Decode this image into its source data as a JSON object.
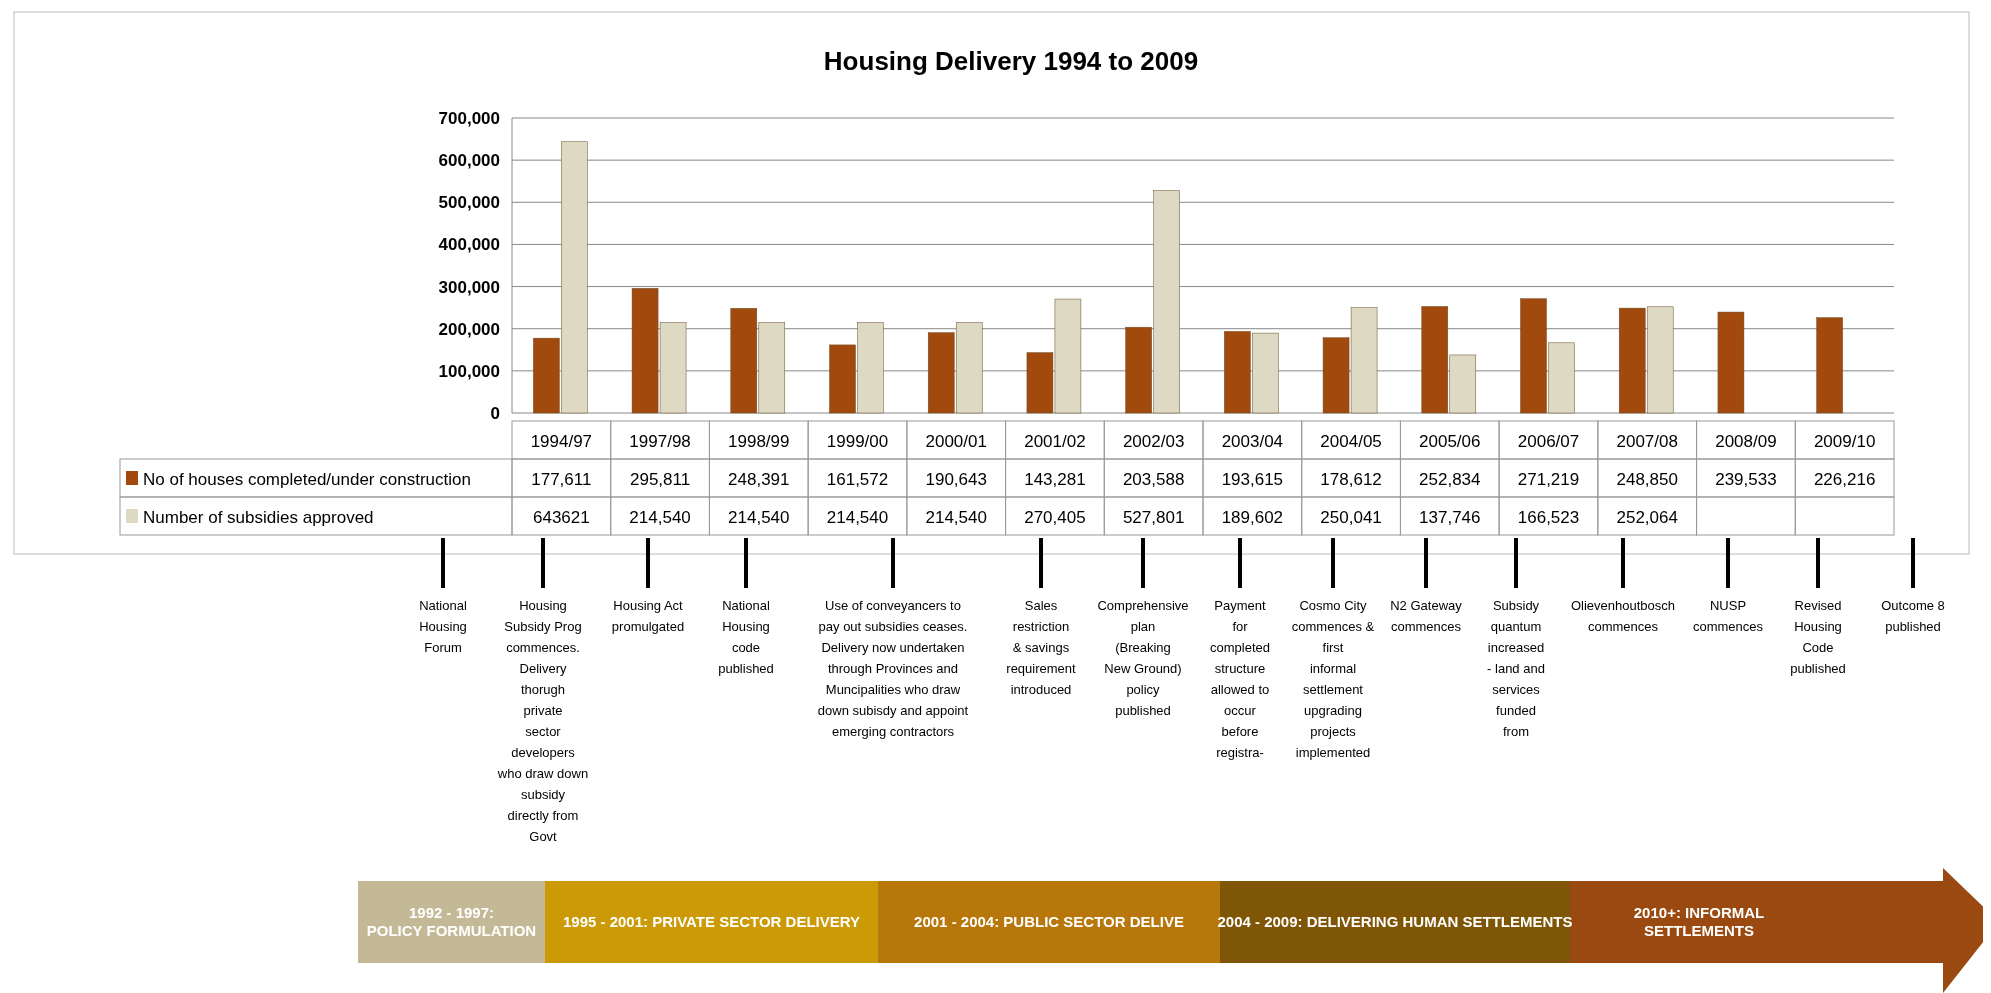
{
  "chart_data": {
    "type": "bar",
    "title": "Housing Delivery 1994 to 2009",
    "categories": [
      "1994/97",
      "1997/98",
      "1998/99",
      "1999/00",
      "2000/01",
      "2001/02",
      "2002/03",
      "2003/04",
      "2004/05",
      "2005/06",
      "2006/07",
      "2007/08",
      "2008/09",
      "2009/10"
    ],
    "series": [
      {
        "name": "No of houses completed/under construction",
        "color": "#a24a0e",
        "values": [
          177611,
          295811,
          248391,
          161572,
          190643,
          143281,
          203588,
          193615,
          178612,
          252834,
          271219,
          248850,
          239533,
          226216
        ],
        "value_labels": [
          "177,611",
          "295,811",
          "248,391",
          "161,572",
          "190,643",
          "143,281",
          "203,588",
          "193,615",
          "178,612",
          "252,834",
          "271,219",
          "248,850",
          "239,533",
          "226,216"
        ]
      },
      {
        "name": "Number of subsidies approved",
        "color": "#ddd9c3",
        "values": [
          643621,
          214540,
          214540,
          214540,
          214540,
          270405,
          527801,
          189602,
          250041,
          137746,
          166523,
          252064,
          null,
          null
        ],
        "value_labels": [
          "643621",
          "214,540",
          "214,540",
          "214,540",
          "214,540",
          "270,405",
          "527,801",
          "189,602",
          "250,041",
          "137,746",
          "166,523",
          "252,064",
          null,
          null
        ]
      }
    ],
    "ylim": [
      0,
      700000
    ],
    "yticks": [
      {
        "value": 0,
        "label": "0"
      },
      {
        "value": 100000,
        "label": "100,000"
      },
      {
        "value": 200000,
        "label": "200,000"
      },
      {
        "value": 300000,
        "label": "300,000"
      },
      {
        "value": 400000,
        "label": "400,000"
      },
      {
        "value": 500000,
        "label": "500,000"
      },
      {
        "value": 600000,
        "label": "600,000"
      },
      {
        "value": 700000,
        "label": "700,000"
      }
    ],
    "grid": "y",
    "legend": "bottom left",
    "annotations": [
      "National Housing Forum",
      "Housing Subsidy Prog commences. Delivery thorugh private sector developers who draw down subsidy directly from Govt",
      "Housing Act promulgated",
      "National Housing code published",
      "Use of conveyancers to pay out subsidies ceases. Delivery now undertaken through Provinces and Muncipalities who draw down subisdy and appoint emerging contractors",
      "Sales restriction & savings requirement introduced",
      "Comprehensive plan (Breaking New Ground) policy published",
      "Payment for completed structure allowed to occur before registra-",
      "Cosmo City commences & first informal settlement upgrading projects implemented",
      "N2 Gateway commences",
      "Subsidy quantum increased - land and services funded from",
      "Olievenhoutbosch commences",
      "NUSP commences",
      "Revised Housing Code published",
      "Outcome 8 published",
      "1992 - 1997: POLICY FORMULATION",
      "1995 - 2001: PRIVATE SECTOR DELIVERY",
      "2001 - 2004: PUBLIC SECTOR DELIVE",
      "2004 - 2009: DELIVERING HUMAN SETTLEMENTS",
      "2010+: INFORMAL SETTLEMENTS"
    ]
  }
}
